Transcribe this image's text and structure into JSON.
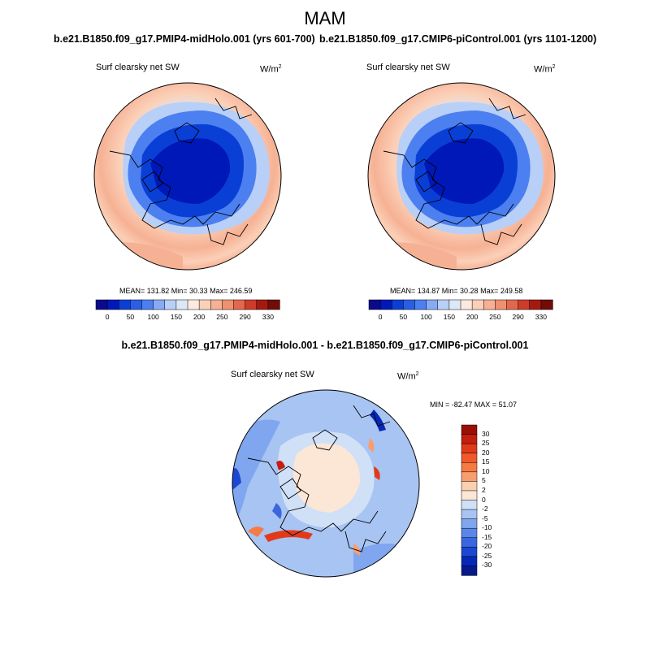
{
  "title": "MAM",
  "panels": [
    {
      "case_title": "b.e21.B1850.f09_g17.PMIP4-midHolo.001 (yrs 601-700)",
      "variable": "Surf clearsky net SW",
      "units": "W/m",
      "units_exp": "2",
      "stats": "MEAN= 131.82  Min=  30.33  Max= 246.59"
    },
    {
      "case_title": "b.e21.B1850.f09_g17.CMIP6-piControl.001 (yrs 1101-1200)",
      "variable": "Surf clearsky net SW",
      "units": "W/m",
      "units_exp": "2",
      "stats": "MEAN= 134.87  Min=  30.28  Max= 249.58"
    }
  ],
  "diff": {
    "title": "b.e21.B1850.f09_g17.PMIP4-midHolo.001 - b.e21.B1850.f09_g17.CMIP6-piControl.001",
    "variable": "Surf clearsky net SW",
    "units": "W/m",
    "units_exp": "2",
    "stats": "MIN = -82.47 MAX =  51.07"
  },
  "chart_data": [
    {
      "type": "heatmap",
      "projection": "north-polar-stereographic",
      "title": "b.e21.B1850.f09_g17.PMIP4-midHolo.001 (yrs 601-700)",
      "variable": "Surf clearsky net SW",
      "units": "W/m^2",
      "mean": 131.82,
      "min": 30.33,
      "max": 246.59,
      "colorbar_levels": [
        0,
        25,
        50,
        75,
        100,
        125,
        150,
        175,
        200,
        225,
        250,
        270,
        290,
        310,
        330
      ],
      "colorbar_labels": [
        "0",
        "50",
        "100",
        "150",
        "200",
        "250",
        "290",
        "330"
      ],
      "colorbar_colors": [
        "#0a0a8a",
        "#0018b8",
        "#0a3fd6",
        "#2a5fe3",
        "#4c7ff0",
        "#86aaf5",
        "#b8cff7",
        "#dde8f7",
        "#fdeade",
        "#fbd0b8",
        "#f6b194",
        "#ef9070",
        "#e2684c",
        "#cd3b2a",
        "#a51a10",
        "#730c06"
      ]
    },
    {
      "type": "heatmap",
      "projection": "north-polar-stereographic",
      "title": "b.e21.B1850.f09_g17.CMIP6-piControl.001 (yrs 1101-1200)",
      "variable": "Surf clearsky net SW",
      "units": "W/m^2",
      "mean": 134.87,
      "min": 30.28,
      "max": 249.58,
      "colorbar_levels": [
        0,
        25,
        50,
        75,
        100,
        125,
        150,
        175,
        200,
        225,
        250,
        270,
        290,
        310,
        330
      ],
      "colorbar_labels": [
        "0",
        "50",
        "100",
        "150",
        "200",
        "250",
        "290",
        "330"
      ],
      "colorbar_colors": [
        "#0a0a8a",
        "#0018b8",
        "#0a3fd6",
        "#2a5fe3",
        "#4c7ff0",
        "#86aaf5",
        "#b8cff7",
        "#dde8f7",
        "#fdeade",
        "#fbd0b8",
        "#f6b194",
        "#ef9070",
        "#e2684c",
        "#cd3b2a",
        "#a51a10",
        "#730c06"
      ]
    },
    {
      "type": "heatmap",
      "projection": "north-polar-stereographic",
      "title": "b.e21.B1850.f09_g17.PMIP4-midHolo.001 - b.e21.B1850.f09_g17.CMIP6-piControl.001",
      "variable": "Surf clearsky net SW",
      "units": "W/m^2",
      "min": -82.47,
      "max": 51.07,
      "colorbar_levels": [
        30,
        25,
        20,
        15,
        10,
        5,
        2,
        0,
        -2,
        -5,
        -10,
        -15,
        -20,
        -25,
        -30
      ],
      "colorbar_colors": [
        "#9b0e06",
        "#c41e0e",
        "#e13a1a",
        "#f2582a",
        "#f57a44",
        "#f89e6e",
        "#fbd0b0",
        "#fce6d6",
        "#cfe0f7",
        "#a8c4f2",
        "#7fa6ee",
        "#5a86e9",
        "#3a67e0",
        "#1b47d2",
        "#0628b8",
        "#061a8e"
      ]
    }
  ]
}
